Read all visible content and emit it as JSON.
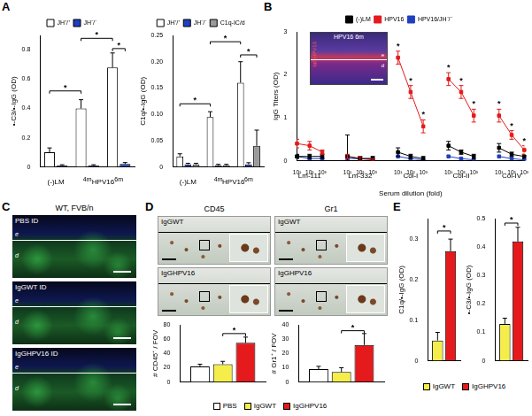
{
  "panel_labels": [
    "A",
    "B",
    "C",
    "D",
    "E"
  ],
  "chart_data": [
    {
      "type": "bar",
      "ylabel": "•-C3/•-IgG (OD)",
      "categories": [
        null,
        "4m",
        "6m"
      ],
      "group_labels": [
        {
          "text": "(-)LM",
          "from": 0,
          "to": 0
        },
        {
          "text": "HPV16",
          "from": 1,
          "to": 2
        }
      ],
      "series": [
        {
          "name": "JH⁺/⁺",
          "color": "#ffffff",
          "values": [
            0.1,
            0.4,
            0.68
          ],
          "errors": [
            0.03,
            0.06,
            0.1
          ]
        },
        {
          "name": "JH⁻/⁻",
          "color": "#1f3fbf",
          "values": [
            0.01,
            0.01,
            0.02
          ],
          "errors": [
            0.005,
            0.005,
            0.01
          ]
        }
      ],
      "ylim": [
        0,
        0.9
      ],
      "yticks": [
        0,
        0.2,
        0.4,
        0.6,
        0.8
      ],
      "legend": "top",
      "brackets": [
        {
          "from": [
            0,
            0
          ],
          "to": [
            1,
            0
          ],
          "y": 0.52,
          "text": "*"
        },
        {
          "from": [
            1,
            0
          ],
          "to": [
            2,
            0
          ],
          "y": 0.88,
          "text": "*"
        },
        {
          "from": [
            2,
            0
          ],
          "to": [
            2,
            1
          ],
          "y": 0.81,
          "text": "*"
        }
      ]
    },
    {
      "type": "bar",
      "ylabel": "C1q/•-IgG (OD)",
      "categories": [
        null,
        "4m",
        "6m"
      ],
      "group_labels": [
        {
          "text": "(-)LM",
          "from": 0,
          "to": 0
        },
        {
          "text": "HPV16",
          "from": 1,
          "to": 2
        }
      ],
      "series": [
        {
          "name": "JH⁺/⁺",
          "color": "#ffffff",
          "values": [
            0.02,
            0.095,
            0.16
          ],
          "errors": [
            0.005,
            0.01,
            0.04
          ]
        },
        {
          "name": "JH⁻/⁻",
          "color": "#1f3fbf",
          "values": [
            0.005,
            0.003,
            0.005
          ],
          "errors": [
            0.002,
            0.002,
            0.003
          ]
        },
        {
          "name": "C1q-IC/d",
          "color": "#9a9a9a",
          "values": [
            0.005,
            0.003,
            0.04
          ],
          "errors": [
            0.002,
            0.002,
            0.03
          ]
        }
      ],
      "ylim": [
        0,
        0.25
      ],
      "yticks": [
        0,
        0.05,
        {
          "value": 0.1,
          "label": "0.10"
        },
        0.15,
        {
          "value": 0.2,
          "label": "0.20"
        },
        0.25
      ],
      "legend": "top",
      "brackets": [
        {
          "from": [
            0,
            0
          ],
          "to": [
            1,
            0
          ],
          "y": 0.12,
          "text": "*"
        },
        {
          "from": [
            2,
            0
          ],
          "to": [
            2,
            2
          ],
          "y": 0.213,
          "text": "*"
        },
        {
          "from": [
            1,
            0
          ],
          "to": [
            2,
            0
          ],
          "y": 0.238,
          "text": "*"
        }
      ]
    },
    {
      "type": "line",
      "xlabel": "Serum dilution (fold)",
      "ylabel": "IgG Titers (OD)",
      "categories": [
        "10¹",
        "10²",
        "10³",
        null,
        "10¹",
        "10²",
        "10³",
        null,
        "10¹",
        "10²",
        "10³",
        null,
        "10¹",
        "10²",
        "10³",
        null,
        "10¹",
        "10²",
        "10³"
      ],
      "group_labels": [
        {
          "text": "Lm-111",
          "from": 0,
          "to": 2
        },
        {
          "text": "Lm-332",
          "from": 4,
          "to": 6
        },
        {
          "text": "Col-I",
          "from": 8,
          "to": 10
        },
        {
          "text": "Col-II",
          "from": 12,
          "to": 14
        },
        {
          "text": "Col-IV",
          "from": 16,
          "to": 18
        }
      ],
      "series": [
        {
          "name": "(-)LM",
          "color": "#000000",
          "marker": "square",
          "values": [
            0.1,
            0.1,
            0.1,
            null,
            0.1,
            0.05,
            0.05,
            null,
            0.2,
            0.1,
            0.05,
            null,
            0.35,
            0.2,
            0.1,
            null,
            0.3,
            0.15,
            0.1
          ],
          "errors": [
            0.05,
            0.05,
            0.05,
            null,
            0.5,
            0.05,
            0.05,
            null,
            0.1,
            0.05,
            0.05,
            null,
            0.1,
            0.05,
            0.05,
            null,
            0.1,
            0.05,
            0.05
          ]
        },
        {
          "name": "HPV16",
          "color": "#e41a1c",
          "marker": "square",
          "values": [
            0.4,
            0.35,
            0.2,
            null,
            0.1,
            0.05,
            0.02,
            null,
            2.4,
            1.6,
            0.8,
            null,
            1.9,
            1.6,
            1.05,
            null,
            1.05,
            0.6,
            0.25
          ],
          "errors": [
            0.1,
            0.1,
            0.05,
            null,
            0.05,
            0.05,
            0.02,
            null,
            0.15,
            0.15,
            0.15,
            null,
            0.15,
            0.15,
            0.15,
            null,
            0.15,
            0.1,
            0.1
          ],
          "significance": [
            null,
            null,
            null,
            null,
            null,
            null,
            null,
            null,
            "*",
            "*",
            "*",
            null,
            "*",
            "*",
            "*",
            null,
            "*",
            "*",
            "*"
          ]
        },
        {
          "name": "HPV16/JH⁻/⁻",
          "color": "#1f3fbf",
          "marker": "square",
          "values": [
            0.1,
            0.05,
            0.05,
            null,
            0.05,
            0.05,
            0.05,
            null,
            0.1,
            0.05,
            0.02,
            null,
            0.1,
            0.05,
            0.02,
            null,
            0.1,
            0.05,
            0.02
          ]
        }
      ],
      "ylim": [
        0,
        3
      ],
      "yticks": [
        0,
        1,
        2,
        3
      ],
      "legend": "top"
    },
    {
      "type": "bar",
      "ylabel": "# CD45⁺ / FOV",
      "categories": [
        null
      ],
      "series": [
        {
          "name": "PBS",
          "color": "#ffffff",
          "values": [
            22
          ],
          "errors": [
            3
          ]
        },
        {
          "name": "IgGWT",
          "color": "#f5ee4a",
          "values": [
            25
          ],
          "errors": [
            4
          ]
        },
        {
          "name": "IgGHPV16",
          "color": "#e41a1c",
          "values": [
            55
          ],
          "errors": [
            8
          ]
        }
      ],
      "ylim": [
        0,
        80
      ],
      "yticks": [
        0,
        20,
        40,
        60,
        80
      ],
      "legend": "bottom",
      "brackets": [
        {
          "from": [
            0,
            1
          ],
          "to": [
            0,
            2
          ],
          "y": 68,
          "text": "*"
        }
      ]
    },
    {
      "type": "bar",
      "ylabel": "# Gr1⁺ / FOV",
      "categories": [
        null
      ],
      "series": [
        {
          "name": "PBS",
          "color": "#ffffff",
          "values": [
            9
          ],
          "errors": [
            2
          ]
        },
        {
          "name": "IgGWT",
          "color": "#f5ee4a",
          "values": [
            7
          ],
          "errors": [
            3
          ]
        },
        {
          "name": "IgGHPV16",
          "color": "#e41a1c",
          "values": [
            26
          ],
          "errors": [
            8
          ]
        }
      ],
      "ylim": [
        0,
        40
      ],
      "yticks": [
        0,
        10,
        20,
        30,
        40
      ],
      "brackets": [
        {
          "from": [
            0,
            1
          ],
          "to": [
            0,
            2
          ],
          "y": 36,
          "text": "*"
        }
      ]
    },
    {
      "type": "bar",
      "ylabel": "C1q/•-IgG (OD)",
      "categories": [
        null
      ],
      "series": [
        {
          "name": "IgGWT",
          "color": "#f5ee4a",
          "values": [
            0.05
          ],
          "errors": [
            0.02
          ]
        },
        {
          "name": "IgGHPV16",
          "color": "#e41a1c",
          "values": [
            0.27
          ],
          "errors": [
            0.03
          ]
        }
      ],
      "ylim": [
        0,
        0.35
      ],
      "yticks": [
        0,
        0.1,
        0.2,
        0.3
      ],
      "legend": "bottom",
      "brackets": [
        {
          "from": [
            0,
            0
          ],
          "to": [
            0,
            1
          ],
          "y": 0.32,
          "text": "*"
        }
      ]
    },
    {
      "type": "bar",
      "ylabel": "•-C3/•-IgG (OD)",
      "categories": [
        null
      ],
      "series": [
        {
          "name": "IgGWT",
          "color": "#f5ee4a",
          "values": [
            0.13
          ],
          "errors": [
            0.02
          ]
        },
        {
          "name": "IgGHPV16",
          "color": "#e41a1c",
          "values": [
            0.42
          ],
          "errors": [
            0.05
          ]
        }
      ],
      "ylim": [
        0,
        0.5
      ],
      "yticks": [
        0,
        0.1,
        0.2,
        0.3,
        0.4,
        0.5
      ],
      "brackets": [
        {
          "from": [
            0,
            0
          ],
          "to": [
            0,
            1
          ],
          "y": 0.485,
          "text": "*"
        }
      ]
    }
  ],
  "panel_B_inset": {
    "title": "HPV16 6m",
    "label": "IgGHPV16",
    "layers": [
      "e",
      "d"
    ]
  },
  "panel_C": {
    "title": "WT, FVB/n",
    "rows": [
      "PBS ID",
      "IgGWT ID",
      "IgGHPV16 ID"
    ],
    "layers": [
      "e",
      "d"
    ]
  },
  "panel_D_images": {
    "columns": [
      "CD45",
      "Gr1"
    ],
    "rows": [
      "IgGWT",
      "IgGHPV16"
    ]
  }
}
